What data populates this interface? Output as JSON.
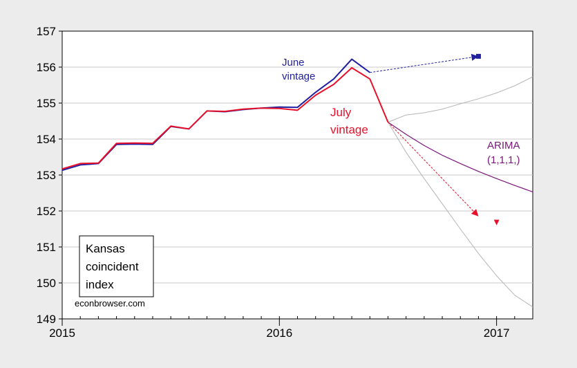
{
  "chart_data": {
    "type": "line",
    "title": "",
    "xlabel": "",
    "ylabel": "",
    "ylim": [
      149,
      157
    ],
    "xlim": [
      "2015-01",
      "2017-03"
    ],
    "grid": true,
    "y_ticks": [
      "149",
      "150",
      "151",
      "152",
      "153",
      "154",
      "155",
      "156",
      "157"
    ],
    "x_ticks": [
      {
        "label": "2015",
        "date": "2015-01"
      },
      {
        "label": "2016",
        "date": "2016-01"
      },
      {
        "label": "2017",
        "date": "2017-01"
      }
    ],
    "series": [
      {
        "name": "June vintage",
        "color": "#1f1fa0",
        "x": [
          "2015-01",
          "2015-02",
          "2015-03",
          "2015-04",
          "2015-05",
          "2015-06",
          "2015-07",
          "2015-08",
          "2015-09",
          "2015-10",
          "2015-11",
          "2015-12",
          "2016-01",
          "2016-02",
          "2016-03",
          "2016-04",
          "2016-05",
          "2016-06"
        ],
        "values": [
          153.13,
          153.28,
          153.32,
          153.85,
          153.86,
          153.85,
          154.35,
          154.28,
          154.78,
          154.76,
          154.82,
          154.86,
          154.89,
          154.88,
          155.3,
          155.67,
          156.22,
          155.85
        ]
      },
      {
        "name": "July vintage",
        "color": "#e8102a",
        "x": [
          "2015-01",
          "2015-02",
          "2015-03",
          "2015-04",
          "2015-05",
          "2015-06",
          "2015-07",
          "2015-08",
          "2015-09",
          "2015-10",
          "2015-11",
          "2015-12",
          "2016-01",
          "2016-02",
          "2016-03",
          "2016-04",
          "2016-05",
          "2016-06",
          "2016-07"
        ],
        "values": [
          153.17,
          153.32,
          153.33,
          153.88,
          153.89,
          153.88,
          154.36,
          154.28,
          154.78,
          154.77,
          154.83,
          154.86,
          154.85,
          154.8,
          155.22,
          155.52,
          155.98,
          155.67,
          154.47
        ]
      },
      {
        "name": "ARIMA (1,1,1,)",
        "color": "#7a177a",
        "x": [
          "2016-07",
          "2016-08",
          "2016-09",
          "2016-10",
          "2016-11",
          "2016-12",
          "2017-01",
          "2017-02",
          "2017-03"
        ],
        "values": [
          154.47,
          154.13,
          153.82,
          153.55,
          153.32,
          153.1,
          152.9,
          152.71,
          152.53
        ]
      },
      {
        "name": "",
        "color": "#b4b4b4",
        "x": [
          "2016-07",
          "2016-08",
          "2016-09",
          "2016-10",
          "2016-11",
          "2016-12",
          "2017-01",
          "2017-02",
          "2017-03"
        ],
        "values": [
          154.47,
          154.67,
          154.73,
          154.83,
          154.98,
          155.12,
          155.28,
          155.48,
          155.73
        ]
      },
      {
        "name": "",
        "color": "#b4b4b4",
        "x": [
          "2016-07",
          "2016-08",
          "2016-09",
          "2016-10",
          "2016-11",
          "2016-12",
          "2017-01",
          "2017-02",
          "2017-03"
        ],
        "values": [
          154.47,
          153.63,
          152.9,
          152.2,
          151.5,
          150.82,
          150.2,
          149.66,
          149.33
        ]
      }
    ],
    "markers": [
      {
        "name": "June vintage projection",
        "color": "#1f1fa0",
        "shape": "square",
        "x": "2016-12",
        "value": 156.3
      },
      {
        "name": "July vintage projection",
        "color": "#e8102a",
        "shape": "triangle-down",
        "x": "2017-01",
        "value": 151.68
      }
    ],
    "arrows": [
      {
        "color": "#1f1fa0",
        "from": {
          "x": "2016-06",
          "value": 155.85
        },
        "to": {
          "x": "2016-12",
          "value": 156.3
        }
      },
      {
        "color": "#e8102a",
        "from": {
          "x": "2016-07",
          "value": 154.47
        },
        "to": {
          "x": "2016-12",
          "value": 151.85
        }
      }
    ],
    "annotations": {
      "june": [
        "June",
        "vintage"
      ],
      "july": [
        "July",
        "vintage"
      ],
      "arima": [
        "ARIMA",
        "(1,1,1,)"
      ],
      "box": [
        "Kansas",
        "coincident",
        "index"
      ],
      "credit": "econbrowser.com"
    }
  }
}
